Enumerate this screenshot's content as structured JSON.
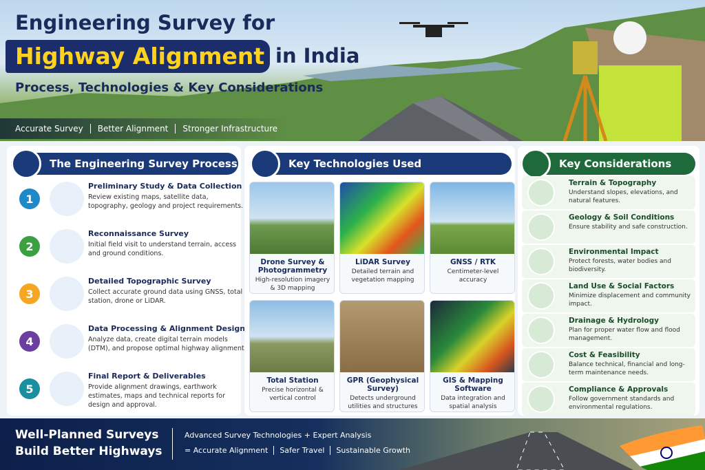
{
  "header": {
    "title_line1": "Engineering Survey for",
    "title_highlight": "Highway Alignment",
    "title_rest": "in India",
    "subtitle": "Process, Technologies & Key Considerations",
    "tags": [
      "Accurate Survey",
      "Better Alignment",
      "Stronger Infrastructure"
    ]
  },
  "process": {
    "title": "The Engineering Survey Process",
    "steps": [
      {
        "number": "1",
        "title": "Preliminary Study & Data Collection",
        "text": "Review existing maps, satellite data, topography, geology and project requirements."
      },
      {
        "number": "2",
        "title": "Reconnaissance Survey",
        "text": "Initial field visit to understand terrain, access and ground conditions."
      },
      {
        "number": "3",
        "title": "Detailed Topographic Survey",
        "text": "Collect accurate ground data using GNSS, total station, drone or LiDAR."
      },
      {
        "number": "4",
        "title": "Data Processing & Alignment Design",
        "text": "Analyze data, create digital terrain models (DTM), and propose optimal highway alignment."
      },
      {
        "number": "5",
        "title": "Final Report & Deliverables",
        "text": "Provide alignment drawings, earthwork estimates, maps and technical reports for design and approval."
      }
    ]
  },
  "technologies": {
    "title": "Key Technologies Used",
    "items": [
      {
        "title": "Drone Survey & Photogrammetry",
        "text": "High-resolution imagery & 3D mapping"
      },
      {
        "title": "LiDAR Survey",
        "text": "Detailed terrain and vegetation mapping"
      },
      {
        "title": "GNSS / RTK",
        "text": "Centimeter-level accuracy"
      },
      {
        "title": "Total Station",
        "text": "Precise horizontal & vertical control"
      },
      {
        "title": "GPR (Geophysical Survey)",
        "text": "Detects underground utilities and structures"
      },
      {
        "title": "GIS & Mapping Software",
        "text": "Data integration and spatial analysis"
      }
    ]
  },
  "considerations": {
    "title": "Key Considerations",
    "items": [
      {
        "title": "Terrain & Topography",
        "text": "Understand slopes, elevations, and natural features."
      },
      {
        "title": "Geology & Soil Conditions",
        "text": "Ensure stability and safe construction."
      },
      {
        "title": "Environmental Impact",
        "text": "Protect forests, water bodies and biodiversity."
      },
      {
        "title": "Land Use & Social Factors",
        "text": "Minimize displacement and community impact."
      },
      {
        "title": "Drainage & Hydrology",
        "text": "Plan for proper water flow and flood management."
      },
      {
        "title": "Cost & Feasibility",
        "text": "Balance technical, financial and long-term maintenance needs."
      },
      {
        "title": "Compliance & Approvals",
        "text": "Follow government standards and environmental regulations."
      }
    ]
  },
  "footer": {
    "slogan_line1": "Well-Planned Surveys",
    "slogan_line2": "Build Better Highways",
    "line1": "Advanced Survey Technologies + Expert Analysis",
    "results": [
      "= Accurate Alignment",
      "Safer Travel",
      "Sustainable Growth"
    ]
  }
}
